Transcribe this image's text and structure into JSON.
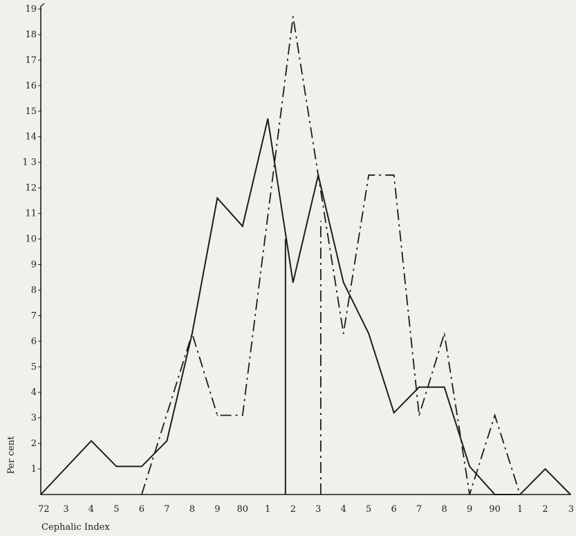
{
  "chart_data": {
    "type": "line",
    "title": "",
    "xlabel": "Cephalic Index",
    "ylabel": "Per cent",
    "x_tick_values": [
      72,
      73,
      74,
      75,
      76,
      77,
      78,
      79,
      80,
      81,
      82,
      83,
      84,
      85,
      86,
      87,
      88,
      89,
      90,
      91,
      92,
      93
    ],
    "x_tick_labels": [
      "72",
      "3",
      "4",
      "5",
      "6",
      "7",
      "8",
      "9",
      "80",
      "1",
      "2",
      "3",
      "4",
      "5",
      "6",
      "7",
      "8",
      "9",
      "90",
      "1",
      "2",
      "3"
    ],
    "xlim": [
      72,
      93
    ],
    "y_tick_values": [
      1,
      2,
      3,
      4,
      5,
      6,
      7,
      8,
      9,
      10,
      11,
      12,
      13,
      14,
      15,
      16,
      17,
      18,
      19
    ],
    "y_tick_labels": [
      "1",
      "2",
      "3",
      "4",
      "5",
      "6",
      "7",
      "8",
      "9",
      "10",
      "11",
      "12",
      "1 3",
      "14",
      "15",
      "16",
      "17",
      "18",
      "19"
    ],
    "ylim": [
      0,
      19
    ],
    "grid": false,
    "series": [
      {
        "style": "solid",
        "color": "#1c1c1c",
        "x": [
          72,
          74,
          75,
          76,
          77,
          78,
          79,
          80,
          81,
          82,
          83,
          84,
          85,
          86,
          87,
          88,
          89,
          90,
          91,
          92,
          93
        ],
        "y": [
          0,
          2.1,
          1.1,
          1.1,
          2.1,
          6.3,
          11.6,
          10.5,
          14.7,
          8.3,
          12.5,
          8.3,
          6.3,
          3.2,
          4.2,
          4.2,
          1.1,
          0,
          0,
          1.0,
          0
        ]
      },
      {
        "style": "dash-dot",
        "color": "#1c1c1c",
        "x": [
          76,
          78,
          79,
          80,
          82,
          83,
          84,
          85,
          86,
          87,
          88,
          89,
          90,
          91
        ],
        "y": [
          0,
          6.3,
          3.1,
          3.1,
          18.7,
          12.5,
          6.3,
          12.5,
          12.5,
          3.1,
          6.3,
          0,
          3.1,
          0
        ]
      }
    ],
    "vertical_lines": [
      {
        "style": "solid",
        "x": 81.7,
        "y_top": 10.0
      },
      {
        "style": "dash-dot",
        "x": 83.1,
        "y_top": 10.7
      }
    ]
  }
}
